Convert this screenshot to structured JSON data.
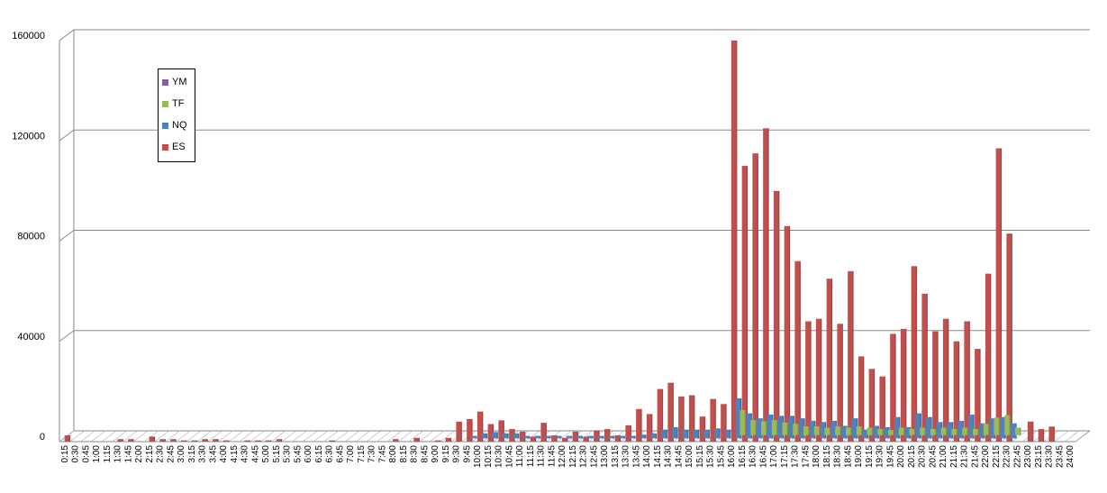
{
  "chart_data": {
    "type": "bar",
    "ylim": [
      0,
      160000
    ],
    "yticks": [
      0,
      40000,
      80000,
      120000,
      160000
    ],
    "legend_position": "upper-left",
    "grid": true,
    "categories": [
      "0:15",
      "0:30",
      "0:45",
      "1:00",
      "1:15",
      "1:30",
      "1:45",
      "2:00",
      "2:15",
      "2:30",
      "2:45",
      "3:00",
      "3:15",
      "3:30",
      "3:45",
      "4:00",
      "4:15",
      "4:30",
      "4:45",
      "5:00",
      "5:15",
      "5:30",
      "5:45",
      "6:00",
      "6:15",
      "6:30",
      "6:45",
      "7:00",
      "7:15",
      "7:30",
      "7:45",
      "8:00",
      "8:15",
      "8:30",
      "8:45",
      "9:00",
      "9:15",
      "9:30",
      "9:45",
      "10:00",
      "10:15",
      "10:30",
      "10:45",
      "11:00",
      "11:15",
      "11:30",
      "11:45",
      "12:00",
      "12:15",
      "12:30",
      "12:45",
      "13:00",
      "13:15",
      "13:30",
      "13:45",
      "14:00",
      "14:15",
      "14:30",
      "14:45",
      "15:00",
      "15:15",
      "15:30",
      "15:45",
      "16:00",
      "16:15",
      "16:30",
      "16:45",
      "17:00",
      "17:15",
      "17:30",
      "17:45",
      "18:00",
      "18:15",
      "18:30",
      "18:45",
      "19:00",
      "19:15",
      "19:30",
      "19:45",
      "20:00",
      "20:15",
      "20:30",
      "20:45",
      "21:00",
      "21:15",
      "21:30",
      "21:45",
      "22:00",
      "22:15",
      "22:30",
      "22:45",
      "23:00",
      "23:15",
      "23:30",
      "23:45",
      "24:00"
    ],
    "series": [
      {
        "name": "YM",
        "color": "#8064a2",
        "values": [
          0,
          0,
          0,
          0,
          0,
          0,
          0,
          0,
          0,
          0,
          0,
          0,
          0,
          0,
          0,
          0,
          0,
          0,
          0,
          0,
          0,
          0,
          0,
          0,
          0,
          0,
          0,
          0,
          0,
          0,
          0,
          0,
          0,
          0,
          0,
          0,
          0,
          0,
          0,
          0,
          0,
          0,
          0,
          0,
          0,
          0,
          0,
          0,
          0,
          0,
          0,
          0,
          0,
          0,
          0,
          0,
          0,
          0,
          0,
          0,
          0,
          0,
          0,
          0,
          0,
          0,
          0,
          0,
          0,
          0,
          0,
          0,
          0,
          0,
          0,
          0,
          0,
          0,
          0,
          0,
          0,
          0,
          0,
          0,
          0,
          0,
          0,
          0,
          0,
          0,
          0,
          0,
          0,
          0,
          0,
          0
        ]
      },
      {
        "name": "TF",
        "color": "#9bbb59",
        "values": [
          0,
          0,
          0,
          0,
          0,
          0,
          0,
          0,
          0,
          0,
          0,
          0,
          0,
          0,
          0,
          0,
          0,
          0,
          0,
          0,
          0,
          0,
          0,
          0,
          0,
          0,
          0,
          0,
          0,
          0,
          0,
          0,
          0,
          0,
          0,
          0,
          0,
          0,
          0,
          0,
          0,
          0,
          0,
          0,
          0,
          0,
          0,
          0,
          0,
          0,
          0,
          0,
          0,
          0,
          0,
          0,
          0,
          0,
          0,
          0,
          0,
          0,
          0,
          10000,
          6000,
          5500,
          6000,
          5000,
          4500,
          3500,
          3500,
          3000,
          3500,
          3000,
          3500,
          3000,
          2500,
          2000,
          3000,
          2500,
          3000,
          2500,
          3000,
          2500,
          3000,
          2500,
          4500,
          7000,
          8000,
          3000,
          0,
          0,
          0,
          0,
          0,
          0
        ]
      },
      {
        "name": "NQ",
        "color": "#4f81bd",
        "values": [
          0,
          0,
          0,
          0,
          0,
          0,
          0,
          0,
          0,
          0,
          0,
          0,
          0,
          0,
          0,
          0,
          0,
          0,
          0,
          0,
          0,
          0,
          0,
          0,
          0,
          0,
          0,
          0,
          0,
          0,
          0,
          0,
          0,
          0,
          0,
          0,
          0,
          0,
          1000,
          2000,
          2500,
          2000,
          2000,
          1000,
          1000,
          1000,
          1000,
          1000,
          1000,
          1000,
          1000,
          1000,
          1000,
          1000,
          1500,
          2000,
          3500,
          4500,
          3500,
          3500,
          3500,
          4000,
          3500,
          16000,
          10000,
          8000,
          9500,
          9000,
          9000,
          8000,
          7000,
          6500,
          7000,
          5000,
          8000,
          3500,
          5000,
          4500,
          8500,
          4500,
          10000,
          8500,
          6500,
          6500,
          7000,
          9500,
          6000,
          8000,
          8500,
          6000,
          0,
          0,
          0,
          0,
          0,
          0
        ]
      },
      {
        "name": "ES",
        "color": "#c0504d",
        "values": [
          2500,
          0,
          0,
          0,
          0,
          1000,
          1000,
          0,
          2000,
          1000,
          1000,
          500,
          500,
          1000,
          1000,
          500,
          0,
          500,
          500,
          500,
          1000,
          0,
          0,
          0,
          0,
          500,
          0,
          0,
          0,
          0,
          0,
          1000,
          0,
          1500,
          0,
          500,
          1500,
          8000,
          9000,
          12000,
          7000,
          8500,
          5000,
          4000,
          2000,
          7500,
          2500,
          1500,
          4000,
          2000,
          4500,
          5000,
          2500,
          6500,
          13000,
          11000,
          21000,
          23500,
          18000,
          18500,
          10000,
          17000,
          15000,
          160000,
          110000,
          115000,
          125000,
          100000,
          86000,
          72000,
          48000,
          49000,
          65000,
          47000,
          68000,
          34000,
          29000,
          26000,
          43000,
          45000,
          70000,
          59000,
          44000,
          49000,
          40000,
          48000,
          37000,
          67000,
          117000,
          83000,
          0,
          8000,
          5000,
          6000,
          0,
          0
        ]
      }
    ]
  }
}
